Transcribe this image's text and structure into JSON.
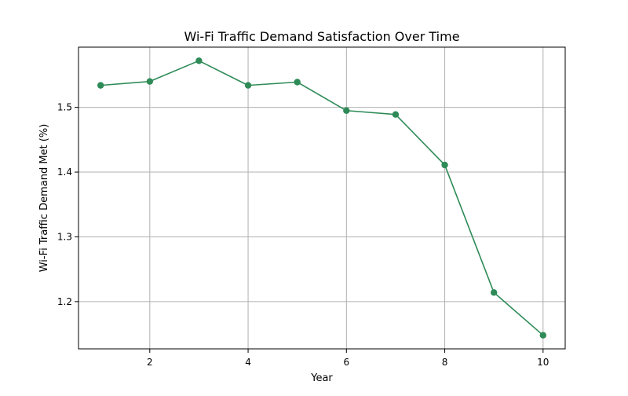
{
  "chart_data": {
    "type": "line",
    "title": "Wi-Fi Traffic Demand Satisfaction Over Time",
    "xlabel": "Year",
    "ylabel": "Wi-Fi Traffic Demand Met (%)",
    "x": [
      1,
      2,
      3,
      4,
      5,
      6,
      7,
      8,
      9,
      10
    ],
    "series": [
      {
        "values": [
          1.534,
          1.54,
          1.572,
          1.534,
          1.539,
          1.495,
          1.489,
          1.411,
          1.214,
          1.148
        ],
        "color": "#2e8b57",
        "marker": "circle"
      }
    ],
    "xlim": [
      0.55,
      10.45
    ],
    "ylim": [
      1.127,
      1.593
    ],
    "xticks": [
      2,
      4,
      6,
      8,
      10
    ],
    "yticks": [
      1.2,
      1.3,
      1.4,
      1.5
    ],
    "xtick_labels": [
      "2",
      "4",
      "6",
      "8",
      "10"
    ],
    "ytick_labels": [
      "1.2",
      "1.3",
      "1.4",
      "1.5"
    ],
    "grid": true,
    "legend": "none"
  }
}
